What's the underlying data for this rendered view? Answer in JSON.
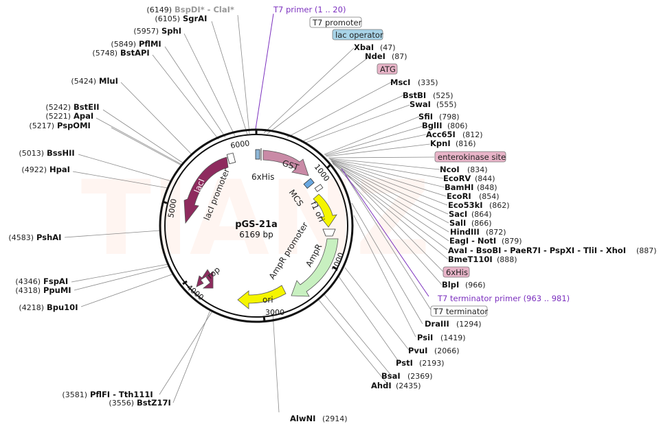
{
  "map": {
    "name": "pGS-21a",
    "size": "6169 bp",
    "watermark": "TIANZ",
    "ticks": [
      "6000",
      "1000",
      "2000",
      "3000",
      "4000",
      "5000"
    ]
  },
  "enzymes_left": [
    {
      "pos": "(6149)",
      "name": "BspDI* - ClaI*"
    },
    {
      "pos": "(6105)",
      "name": "SgrAI"
    },
    {
      "pos": "(5957)",
      "name": "SphI"
    },
    {
      "pos": "(5849)",
      "name": "PflMI"
    },
    {
      "pos": "(5748)",
      "name": "BstAPI"
    },
    {
      "pos": "(5424)",
      "name": "MluI"
    },
    {
      "pos": "(5242)",
      "name": "BstEII"
    },
    {
      "pos": "(5221)",
      "name": "ApaI"
    },
    {
      "pos": "(5217)",
      "name": "PspOMI"
    },
    {
      "pos": "(5013)",
      "name": "BssHII"
    },
    {
      "pos": "(4922)",
      "name": "HpaI"
    },
    {
      "pos": "(4583)",
      "name": "PshAI"
    },
    {
      "pos": "(4346)",
      "name": "FspAI"
    },
    {
      "pos": "(4318)",
      "name": "PpuMI"
    },
    {
      "pos": "(4218)",
      "name": "Bpu10I"
    },
    {
      "pos": "(3581)",
      "name": "PflFI - Tth111I"
    },
    {
      "pos": "(3556)",
      "name": "BstZ17I"
    }
  ],
  "enzymes_right": [
    {
      "name": "XbaI",
      "pos": "(47)"
    },
    {
      "name": "NdeI",
      "pos": "(87)"
    },
    {
      "name": "MscI",
      "pos": "(335)"
    },
    {
      "name": "BstBI",
      "pos": "(525)"
    },
    {
      "name": "SwaI",
      "pos": "(555)"
    },
    {
      "name": "SfiI",
      "pos": "(798)"
    },
    {
      "name": "BglII",
      "pos": "(806)"
    },
    {
      "name": "Acc65I",
      "pos": "(812)"
    },
    {
      "name": "KpnI",
      "pos": "(816)"
    },
    {
      "name": "NcoI",
      "pos": "(834)"
    },
    {
      "name": "EcoRV",
      "pos": "(844)"
    },
    {
      "name": "BamHI",
      "pos": "(848)"
    },
    {
      "name": "EcoRI",
      "pos": "(854)"
    },
    {
      "name": "Eco53kI",
      "pos": "(862)"
    },
    {
      "name": "SacI",
      "pos": "(864)"
    },
    {
      "name": "SalI",
      "pos": "(866)"
    },
    {
      "name": "HindIII",
      "pos": "(872)"
    },
    {
      "name": "EagI - NotI",
      "pos": "(879)"
    },
    {
      "name": "AvaI - BsoBI - PaeR7I - PspXI - TliI - XhoI",
      "pos": "(887)"
    },
    {
      "name": "BmeT110I",
      "pos": "(888)"
    },
    {
      "name": "BlpI",
      "pos": "(966)"
    },
    {
      "name": "DraIII",
      "pos": "(1294)"
    },
    {
      "name": "PsiI",
      "pos": "(1419)"
    },
    {
      "name": "PvuI",
      "pos": "(2066)"
    },
    {
      "name": "PstI",
      "pos": "(2193)"
    },
    {
      "name": "BsaI",
      "pos": "(2369)"
    },
    {
      "name": "AhdI",
      "pos": "(2435)"
    }
  ],
  "enzyme_bottom": {
    "name": "AlwNI",
    "pos": "(2914)"
  },
  "primers": {
    "t7_primer": "T7 primer  (1 .. 20)",
    "t7_term_primer": "T7 terminator primer  (963 .. 981)"
  },
  "boxed": {
    "t7_promoter": "T7 promoter",
    "lac_operator": "lac operator",
    "atg": "ATG",
    "enterokinase": "enterokinase site",
    "his6": "6xHis",
    "t7_terminator": "T7 terminator"
  },
  "features": {
    "gst": "GST",
    "his6_inner": "6xHis",
    "mcs": "MCS",
    "f1ori": "f1 ori",
    "ampr": "AmpR",
    "ampr_promoter": "AmpR promoter",
    "ori": "ori",
    "rop": "rop",
    "laci": "lacI",
    "laci_promoter": "lacI promoter"
  },
  "colors": {
    "gst": "#c98aa6",
    "laci": "#8e2b5e",
    "rop": "#8e2b5e",
    "f1ori": "#f5f500",
    "ori": "#f5f500",
    "ampr": "#c8f0c0",
    "primer": "#7b2fbe",
    "lac_operator_fill": "#a8d4e8",
    "pink_fill": "#e8b4c8"
  }
}
